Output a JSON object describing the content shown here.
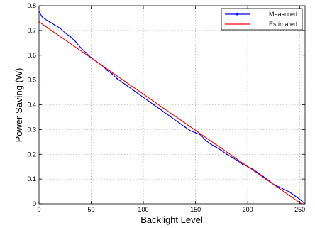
{
  "chart_data": {
    "type": "line",
    "title": "",
    "xlabel": "Backlight Level",
    "ylabel": "Power Saving (W)",
    "xlim": [
      0,
      255
    ],
    "ylim": [
      0,
      0.8
    ],
    "xticks": [
      0,
      50,
      100,
      150,
      200,
      250
    ],
    "yticks": [
      0,
      0.1,
      0.2,
      0.3,
      0.4,
      0.5,
      0.6,
      0.7,
      0.8
    ],
    "xtick_labels": [
      "0",
      "50",
      "100",
      "150",
      "200",
      "250"
    ],
    "ytick_labels": [
      "0",
      "0.1",
      "0.2",
      "0.3",
      "0.4",
      "0.5",
      "0.6",
      "0.7",
      "0.8"
    ],
    "grid": true,
    "legend_position": "top-right",
    "series": [
      {
        "name": "Measured",
        "color": "#0000ff",
        "marker": "dot",
        "x": [
          0,
          3,
          6,
          10,
          15,
          20,
          25,
          30,
          35,
          40,
          45,
          50,
          55,
          60,
          65,
          70,
          75,
          80,
          85,
          90,
          95,
          100,
          105,
          110,
          115,
          120,
          125,
          130,
          135,
          140,
          145,
          150,
          155,
          160,
          165,
          170,
          175,
          180,
          185,
          190,
          195,
          200,
          205,
          210,
          215,
          220,
          225,
          230,
          235,
          240,
          245,
          250,
          255
        ],
        "y": [
          0.775,
          0.755,
          0.745,
          0.735,
          0.722,
          0.71,
          0.69,
          0.675,
          0.655,
          0.63,
          0.61,
          0.59,
          0.575,
          0.56,
          0.54,
          0.525,
          0.505,
          0.49,
          0.475,
          0.46,
          0.445,
          0.43,
          0.415,
          0.4,
          0.385,
          0.37,
          0.355,
          0.34,
          0.325,
          0.31,
          0.295,
          0.287,
          0.278,
          0.255,
          0.24,
          0.228,
          0.215,
          0.2,
          0.188,
          0.175,
          0.16,
          0.15,
          0.14,
          0.125,
          0.11,
          0.095,
          0.078,
          0.068,
          0.058,
          0.048,
          0.033,
          0.018,
          0.0
        ]
      },
      {
        "name": "Estimated",
        "color": "#ff0000",
        "marker": "none",
        "x": [
          0,
          255
        ],
        "y": [
          0.735,
          -0.01
        ]
      }
    ]
  }
}
